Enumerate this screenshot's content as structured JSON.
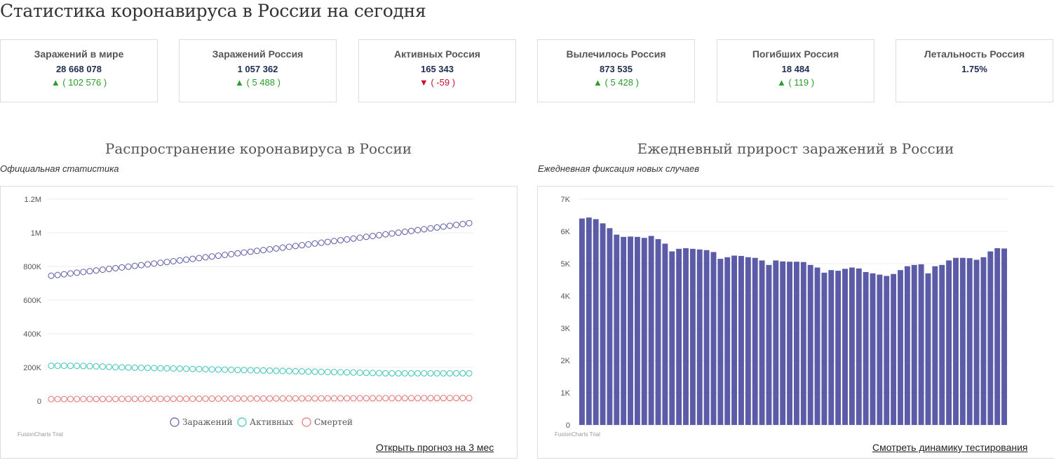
{
  "page": {
    "title": "Статистика коронавируса в России на сегодня"
  },
  "stats": [
    {
      "label": "Заражений в мире",
      "value": "28 668 078",
      "change": "▲ ( 102 576 )",
      "direction": "up"
    },
    {
      "label": "Заражений Россия",
      "value": "1 057 362",
      "change": "▲ ( 5 488 )",
      "direction": "up"
    },
    {
      "label": "Активных Россия",
      "value": "165 343",
      "change": "▼ ( -59 )",
      "direction": "down"
    },
    {
      "label": "Вылечилось Россия",
      "value": "873 535",
      "change": "▲ ( 5 428 )",
      "direction": "up"
    },
    {
      "label": "Погибших Россия",
      "value": "18 484",
      "change": "▲ ( 119 )",
      "direction": "up"
    },
    {
      "label": "Летальность Россия",
      "value": "1.75%",
      "change": "",
      "direction": ""
    }
  ],
  "colors": {
    "infected": "#5b5ba8",
    "active": "#3cc4b4",
    "deaths": "#e87070",
    "bars": "#5b5ba8",
    "up": "#2a9d2a",
    "down": "#c8102e"
  },
  "chart_data": [
    {
      "type": "line",
      "title": "Распространение коронавируса в России",
      "subtitle": "Официальная статистика",
      "watermark": "FusionCharts Trial",
      "link": "Открыть прогноз на 3 мес",
      "ylim": [
        0,
        1200000
      ],
      "y_ticks": [
        "0",
        "200K",
        "400K",
        "600K",
        "800K",
        "1M",
        "1.2M"
      ],
      "grid": true,
      "legend_position": "bottom",
      "series": [
        {
          "name": "Заражений",
          "start": 745000,
          "end": 1057362
        },
        {
          "name": "Активных",
          "start": 210000,
          "end": 165343
        },
        {
          "name": "Смертей",
          "start": 12000,
          "end": 18484
        }
      ],
      "points": 66
    },
    {
      "type": "bar",
      "title": "Ежедневный прирост заражений в России",
      "subtitle": "Ежедневная фиксация новых случаев",
      "watermark": "FusionCharts Trial",
      "link": "Смотреть динамику тестирования",
      "ylim": [
        0,
        7000
      ],
      "y_ticks": [
        "0",
        "1K",
        "2K",
        "3K",
        "4K",
        "5K",
        "6K",
        "7K"
      ],
      "grid": true,
      "values": [
        6400,
        6430,
        6380,
        6250,
        6100,
        5900,
        5830,
        5840,
        5830,
        5800,
        5860,
        5760,
        5620,
        5380,
        5460,
        5480,
        5460,
        5440,
        5420,
        5360,
        5150,
        5200,
        5250,
        5240,
        5200,
        5180,
        5100,
        4960,
        5100,
        5070,
        5060,
        5060,
        5050,
        4960,
        4880,
        4720,
        4800,
        4780,
        4840,
        4880,
        4850,
        4740,
        4700,
        4660,
        4620,
        4680,
        4800,
        4920,
        4960,
        4980,
        4700,
        4920,
        4960,
        5100,
        5180,
        5180,
        5170,
        5120,
        5200,
        5380,
        5480,
        5470
      ]
    }
  ]
}
